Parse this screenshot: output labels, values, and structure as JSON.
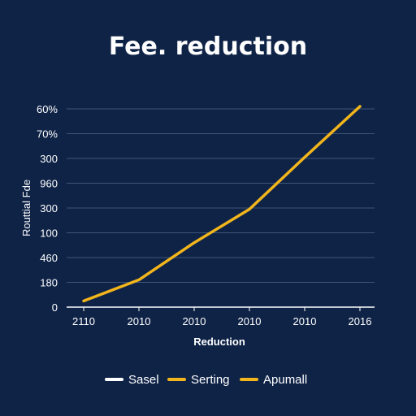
{
  "chart_data": {
    "type": "line",
    "title": "Fee. reduction",
    "xlabel": "Reduction",
    "ylabel": "Routtial Fde",
    "x_tick_labels": [
      "2110",
      "2010",
      "2010",
      "2010",
      "2010",
      "2016"
    ],
    "y_tick_labels": [
      "0",
      "180",
      "460",
      "100",
      "300",
      "960",
      "300",
      "70%",
      "60%"
    ],
    "grid": true,
    "legend_position": "bottom",
    "legend": [
      {
        "name": "Sasel",
        "color": "#ffffff"
      },
      {
        "name": "Serting",
        "color": "#f2b51c"
      },
      {
        "name": "Apumall",
        "color": "#f2b51c"
      }
    ],
    "series": [
      {
        "name": "Serting",
        "color": "#f2b51c",
        "points": [
          [
            0,
            0.25
          ],
          [
            1,
            1.1
          ],
          [
            2,
            2.6
          ],
          [
            3,
            3.95
          ],
          [
            4,
            6.05
          ],
          [
            5,
            8.1
          ]
        ]
      }
    ]
  }
}
